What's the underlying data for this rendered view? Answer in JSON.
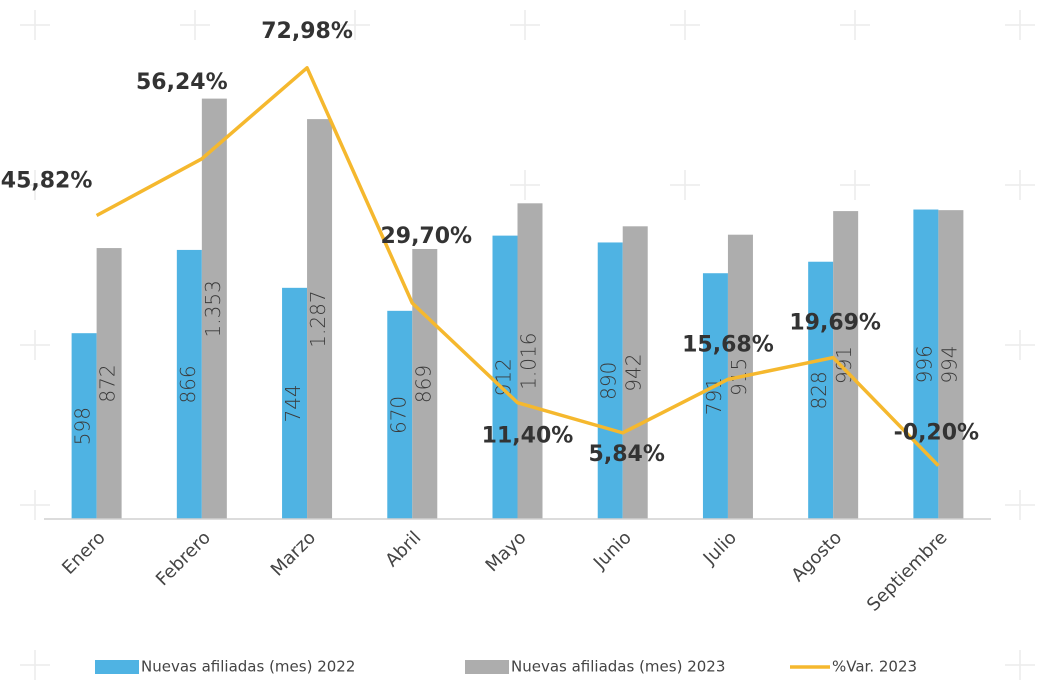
{
  "chart_data": {
    "type": "bar",
    "categories": [
      "Enero",
      "Febrero",
      "Marzo",
      "Abril",
      "Mayo",
      "Junio",
      "Julio",
      "Agosto",
      "Septiembre"
    ],
    "series": [
      {
        "name": "Nuevas afiliadas (mes) 2022",
        "type": "bar",
        "color": "#4fb3e3",
        "values": [
          598,
          866,
          744,
          670,
          912,
          890,
          791,
          828,
          996
        ]
      },
      {
        "name": "Nuevas afiliadas (mes) 2023",
        "type": "bar",
        "color": "#adadad",
        "values": [
          872,
          1353,
          1287,
          869,
          1016,
          942,
          915,
          991,
          994
        ],
        "value_labels": [
          "872",
          "1.353",
          "1.287",
          "869",
          "1.016",
          "942",
          "915",
          "991",
          "994"
        ]
      },
      {
        "name": "%Var. 2023",
        "type": "line",
        "axis": "y2",
        "color": "#f5b82e",
        "values": [
          45.82,
          56.24,
          72.98,
          29.7,
          11.4,
          5.84,
          15.68,
          19.69,
          -0.2
        ],
        "value_labels": [
          "45,82%",
          "56,24%",
          "72,98%",
          "29,70%",
          "11,40%",
          "5,84%",
          "15,68%",
          "19,69%",
          "-0,20%"
        ]
      }
    ],
    "ylim": [
      0,
      1400
    ],
    "y2lim": [
      -10,
      70
    ],
    "legend": "bottom"
  }
}
